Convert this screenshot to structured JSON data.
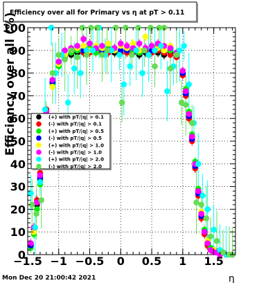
{
  "chart_data": {
    "type": "scatter",
    "title": "Efficiency over all for Primary vs  η at pT > 0.11",
    "ylabel": "Efficiency over all (%)",
    "xlabel": "η",
    "xlim": [
      -1.5,
      1.85
    ],
    "ylim": [
      0,
      100
    ],
    "x_ticks": [
      "−1.5",
      "−1",
      "−0.5",
      "0",
      "0.5",
      "1",
      "1.5"
    ],
    "x_tick_values": [
      -1.5,
      -1,
      -0.5,
      0,
      0.5,
      1,
      1.5
    ],
    "y_ticks": [
      "0",
      "10",
      "20",
      "30",
      "40",
      "50",
      "60",
      "70",
      "80",
      "90",
      "100"
    ],
    "grid": true,
    "legend_position": "center-left",
    "series": [
      {
        "name": "(+) with pT/|q| > 0.1",
        "color": "#000000",
        "x": [
          -1.45,
          -1.4,
          -1.35,
          -1.3,
          -1.25,
          -1.2,
          -1.1,
          -1.0,
          -0.9,
          -0.8,
          -0.7,
          -0.6,
          -0.5,
          -0.4,
          -0.3,
          -0.2,
          -0.1,
          0.0,
          0.1,
          0.2,
          0.3,
          0.4,
          0.5,
          0.6,
          0.7,
          0.8,
          0.9,
          1.0,
          1.05,
          1.1,
          1.15,
          1.2,
          1.25,
          1.3,
          1.35,
          1.4,
          1.45,
          1.5,
          1.55,
          1.6,
          1.7,
          1.8
        ],
        "y": [
          4,
          10,
          22,
          33,
          45,
          62,
          76,
          84,
          87,
          88,
          89,
          89,
          90,
          89,
          89,
          90,
          89,
          89,
          90,
          89,
          88,
          89,
          90,
          89,
          88,
          89,
          88,
          80,
          72,
          62,
          52,
          40,
          28,
          18,
          10,
          5,
          3,
          2,
          1,
          0,
          0,
          0
        ]
      },
      {
        "name": "(-) with pT/|q| > 0.1",
        "color": "#ff0000",
        "x": [
          -1.45,
          -1.4,
          -1.35,
          -1.3,
          -1.25,
          -1.2,
          -1.1,
          -1.0,
          -0.9,
          -0.8,
          -0.7,
          -0.6,
          -0.5,
          -0.4,
          -0.3,
          -0.2,
          -0.1,
          0.0,
          0.1,
          0.2,
          0.3,
          0.4,
          0.5,
          0.6,
          0.7,
          0.8,
          0.9,
          1.0,
          1.05,
          1.1,
          1.15,
          1.2,
          1.25,
          1.3,
          1.35,
          1.4,
          1.45,
          1.5,
          1.55,
          1.6,
          1.7,
          1.8
        ],
        "y": [
          5,
          12,
          24,
          36,
          48,
          64,
          77,
          85,
          88,
          89,
          90,
          89,
          89,
          90,
          89,
          89,
          90,
          89,
          89,
          90,
          89,
          90,
          89,
          90,
          89,
          88,
          87,
          79,
          70,
          60,
          50,
          38,
          26,
          16,
          9,
          4,
          2,
          1,
          1,
          0,
          0,
          0
        ]
      },
      {
        "name": "(+) with pT/|q| > 0.5",
        "color": "#00ee00",
        "x": [
          -1.45,
          -1.4,
          -1.35,
          -1.3,
          -1.25,
          -1.2,
          -1.1,
          -1.0,
          -0.9,
          -0.8,
          -0.7,
          -0.6,
          -0.5,
          -0.4,
          -0.3,
          -0.2,
          -0.1,
          0.0,
          0.1,
          0.2,
          0.3,
          0.4,
          0.5,
          0.6,
          0.7,
          0.8,
          0.9,
          1.0,
          1.05,
          1.1,
          1.15,
          1.2,
          1.25,
          1.3,
          1.35,
          1.4,
          1.45,
          1.5,
          1.55,
          1.6,
          1.7,
          1.8
        ],
        "y": [
          3,
          9,
          20,
          31,
          44,
          60,
          75,
          83,
          87,
          89,
          90,
          90,
          91,
          89,
          90,
          91,
          90,
          90,
          91,
          90,
          89,
          91,
          90,
          92,
          90,
          90,
          89,
          81,
          73,
          63,
          53,
          41,
          29,
          19,
          11,
          6,
          3,
          2,
          1,
          0,
          0,
          0
        ]
      },
      {
        "name": "(-) with pT/|q| > 0.5",
        "color": "#0000ff",
        "x": [
          -1.45,
          -1.4,
          -1.35,
          -1.3,
          -1.25,
          -1.2,
          -1.1,
          -1.0,
          -0.9,
          -0.8,
          -0.7,
          -0.6,
          -0.5,
          -0.4,
          -0.3,
          -0.2,
          -0.1,
          0.0,
          0.1,
          0.2,
          0.3,
          0.4,
          0.5,
          0.6,
          0.7,
          0.8,
          0.9,
          1.0,
          1.05,
          1.1,
          1.15,
          1.2,
          1.25,
          1.3,
          1.35,
          1.4,
          1.45,
          1.5,
          1.55,
          1.6,
          1.7,
          1.8
        ],
        "y": [
          4,
          11,
          23,
          34,
          46,
          63,
          76,
          84,
          88,
          90,
          91,
          90,
          90,
          91,
          90,
          90,
          91,
          90,
          90,
          91,
          90,
          91,
          90,
          91,
          90,
          91,
          88,
          80,
          71,
          61,
          51,
          39,
          27,
          17,
          10,
          5,
          2,
          1,
          1,
          0,
          0,
          0
        ]
      },
      {
        "name": "(+) with pT/|q| > 1.0",
        "color": "#ffff00",
        "x": [
          -1.4,
          -1.3,
          -1.2,
          -1.1,
          -1.0,
          -0.9,
          -0.8,
          -0.7,
          -0.6,
          -0.5,
          -0.4,
          -0.3,
          -0.2,
          -0.1,
          0.0,
          0.1,
          0.2,
          0.3,
          0.4,
          0.5,
          0.6,
          0.7,
          0.8,
          0.9,
          1.0,
          1.1,
          1.2,
          1.3,
          1.4,
          1.5,
          1.6
        ],
        "y": [
          10,
          32,
          60,
          74,
          84,
          88,
          90,
          91,
          92,
          90,
          92,
          91,
          93,
          90,
          92,
          91,
          93,
          90,
          96,
          92,
          91,
          90,
          92,
          89,
          81,
          62,
          40,
          19,
          6,
          2,
          0
        ]
      },
      {
        "name": "(-) with pT/|q| > 1.0",
        "color": "#ff00ff",
        "x": [
          -1.45,
          -1.4,
          -1.35,
          -1.3,
          -1.25,
          -1.2,
          -1.1,
          -1.0,
          -0.9,
          -0.8,
          -0.7,
          -0.6,
          -0.5,
          -0.4,
          -0.3,
          -0.2,
          -0.1,
          0.0,
          0.1,
          0.2,
          0.3,
          0.4,
          0.5,
          0.6,
          0.7,
          0.8,
          0.9,
          1.0,
          1.05,
          1.1,
          1.15,
          1.2,
          1.25,
          1.3,
          1.35,
          1.4,
          1.45,
          1.5,
          1.55,
          1.6,
          1.7,
          1.8
        ],
        "y": [
          5,
          12,
          23,
          35,
          47,
          63,
          77,
          85,
          90,
          91,
          92,
          95,
          93,
          91,
          92,
          90,
          91,
          93,
          92,
          91,
          93,
          91,
          92,
          93,
          92,
          91,
          89,
          81,
          72,
          62,
          52,
          40,
          28,
          18,
          10,
          5,
          2,
          1,
          1,
          0,
          0,
          0
        ]
      },
      {
        "name": "(+) with pT/|q| > 2.0",
        "color": "#00ffff",
        "x": [
          -1.45,
          -1.38,
          -1.3,
          -1.22,
          -1.12,
          -1.05,
          -0.95,
          -0.85,
          -0.75,
          -0.65,
          -0.55,
          -0.45,
          -0.35,
          -0.25,
          -0.15,
          -0.02,
          0.05,
          0.15,
          0.25,
          0.35,
          0.45,
          0.55,
          0.65,
          0.75,
          0.85,
          0.95,
          1.02,
          1.1,
          1.18,
          1.25,
          1.32,
          1.4,
          1.5,
          1.6,
          1.7
        ],
        "y": [
          27,
          12,
          32,
          64,
          100,
          80,
          88,
          67,
          82,
          80,
          90,
          90,
          100,
          88,
          90,
          88,
          75,
          83,
          90,
          80,
          88,
          90,
          92,
          72,
          83,
          90,
          92,
          75,
          58,
          40,
          26,
          20,
          11,
          2,
          0
        ]
      },
      {
        "name": "(-) with pT/|q| > 2.0",
        "color": "#66dd55",
        "x": [
          -1.43,
          -1.36,
          -1.28,
          -1.2,
          -1.1,
          -1.0,
          -0.9,
          -0.8,
          -0.7,
          -0.62,
          -0.55,
          -0.48,
          -0.38,
          -0.3,
          -0.22,
          -0.08,
          0.02,
          0.08,
          0.18,
          0.28,
          0.38,
          0.48,
          0.55,
          0.62,
          0.7,
          0.8,
          0.9,
          0.98,
          1.05,
          1.15,
          1.22,
          1.3,
          1.38,
          1.45,
          1.55,
          1.65,
          1.75,
          1.8
        ],
        "y": [
          22,
          18,
          24,
          58,
          80,
          88,
          86,
          90,
          87,
          100,
          88,
          100,
          100,
          88,
          90,
          100,
          67,
          100,
          88,
          100,
          90,
          100,
          83,
          100,
          100,
          82,
          88,
          67,
          66,
          58,
          23,
          22,
          16,
          8,
          6,
          1,
          0,
          0
        ]
      }
    ]
  },
  "footer_text": "Mon Dec 20 21:00:42 2021"
}
